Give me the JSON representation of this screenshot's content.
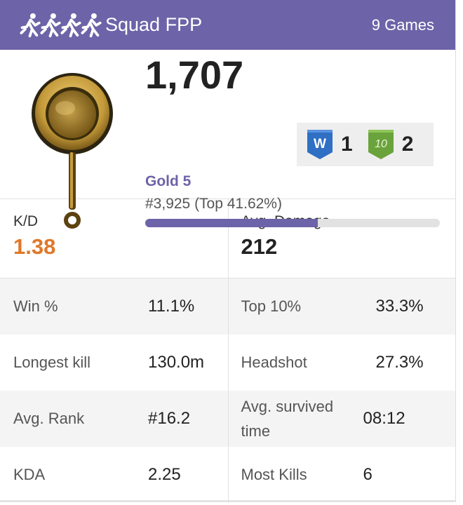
{
  "header": {
    "mode": "Squad FPP",
    "games": "9 Games",
    "icon": "runners-icon",
    "color": "#6d63a8"
  },
  "rating": {
    "score": "1,707",
    "tier": "Gold 5",
    "rank": "#3,925 (Top 41.62%)",
    "progress_fraction": 0.585,
    "tier_icon": "frying-pan-icon",
    "wins_badge": {
      "letter": "W",
      "count": "1",
      "color": "#2f6fc4"
    },
    "top10_badge": {
      "letter": "10",
      "count": "2",
      "color": "#6aa33b"
    }
  },
  "kd": {
    "label": "K/D",
    "value": "1.38",
    "color": "#e07829"
  },
  "avg_damage": {
    "label": "Avg. Damage",
    "value": "212"
  },
  "stats": [
    {
      "left_label": "Win %",
      "left_value": "11.1%",
      "right_label": "Top 10%",
      "right_value": "33.3%"
    },
    {
      "left_label": "Longest kill",
      "left_value": "130.0m",
      "right_label": "Headshot",
      "right_value": "27.3%"
    },
    {
      "left_label": "Avg. Rank",
      "left_value": "#16.2",
      "right_label": "Avg. survived time",
      "right_value": "08:12"
    },
    {
      "left_label": "KDA",
      "left_value": "2.25",
      "right_label": "Most Kills",
      "right_value": "6"
    }
  ]
}
